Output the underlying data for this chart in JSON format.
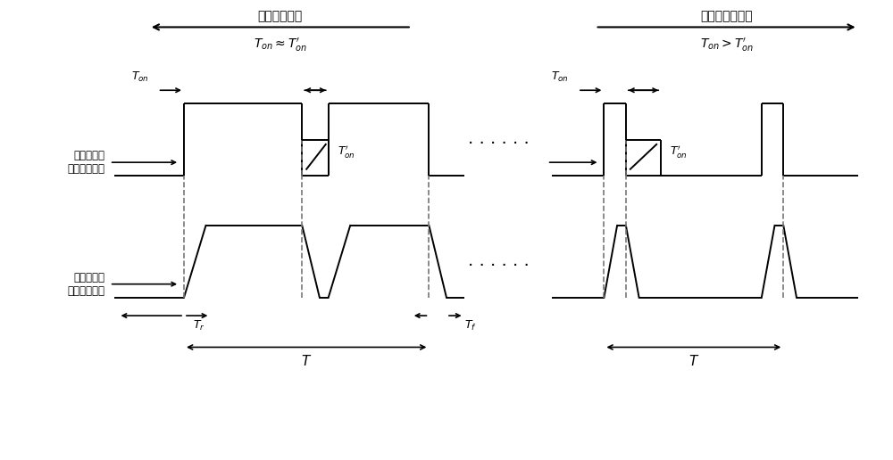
{
  "title_left": "电网电压峰值",
  "title_right": "电网电压过零点",
  "label_ideal": "器件理想导\n通、关断波形",
  "label_actual": "器件实际导\n通、关断波形",
  "bg_color": "#ffffff",
  "line_color": "#000000",
  "dashed_color": "#777777"
}
